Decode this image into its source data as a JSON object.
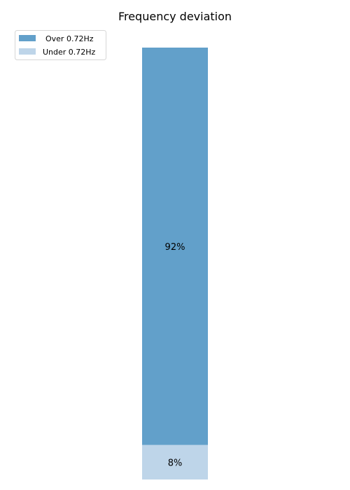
{
  "chart_data": {
    "type": "bar",
    "stacked": true,
    "orientation": "vertical",
    "title": "Frequency deviation",
    "xlabel": "",
    "ylabel": "",
    "ylim": [
      0,
      100
    ],
    "axes_visible": false,
    "grid": false,
    "legend_position": "top-left",
    "series": [
      {
        "name": "Over 0.72Hz",
        "value": 92,
        "label": "92%",
        "color": "#62a0ca"
      },
      {
        "name": "Under 0.72Hz",
        "value": 8,
        "label": "8%",
        "color": "#bed5e9"
      }
    ]
  }
}
